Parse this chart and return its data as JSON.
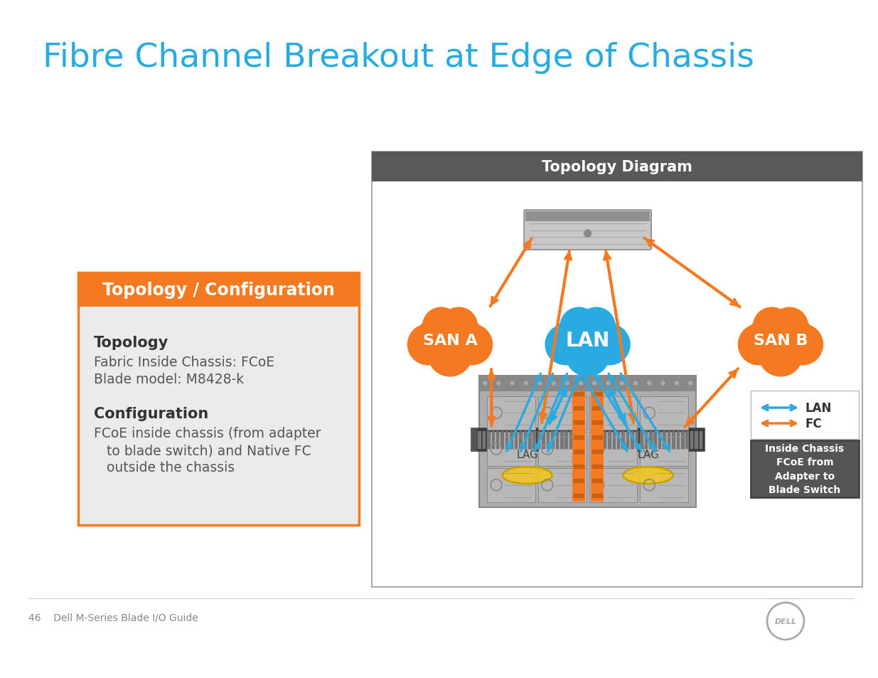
{
  "title": "Fibre Channel Breakout at Edge of Chassis",
  "title_color": "#29ABE2",
  "page_bg": "#FFFFFF",
  "left_header": "Topology / Configuration",
  "left_header_bg": "#F47920",
  "left_header_fg": "#FFFFFF",
  "left_body_bg": "#EBEBEB",
  "left_border": "#F47920",
  "topo_title": "Topology",
  "topo_line1": "Fabric Inside Chassis: FCoE",
  "topo_line2": "Blade model: M8428-k",
  "conf_title": "Configuration",
  "conf_line1": "FCoE inside chassis (from adapter",
  "conf_line2": "   to blade switch) and Native FC",
  "conf_line3": "   outside the chassis",
  "diag_header": "Topology Diagram",
  "diag_header_bg": "#595959",
  "diag_header_fg": "#FFFFFF",
  "diag_panel_bg": "#FFFFFF",
  "diag_border": "#AAAAAA",
  "lan_color": "#29ABE2",
  "fc_color": "#F47920",
  "san_color": "#F47920",
  "dark": "#444444",
  "footer_text": "46    Dell M-Series Blade I/O Guide",
  "footer_color": "#888888"
}
